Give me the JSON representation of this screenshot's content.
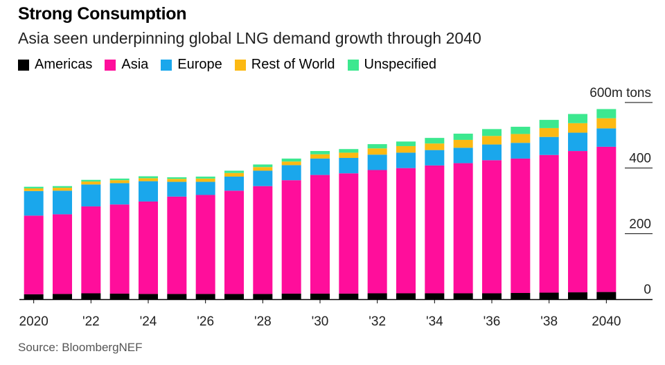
{
  "header": {
    "title": "Strong Consumption",
    "subtitle": "Asia seen underpinning global LNG demand growth through 2040"
  },
  "footer": {
    "source": "Source: BloombergNEF"
  },
  "legend": [
    {
      "name": "Americas",
      "color": "#000000"
    },
    {
      "name": "Asia",
      "color": "#ff0e9b"
    },
    {
      "name": "Europe",
      "color": "#1aa7ec"
    },
    {
      "name": "Rest of World",
      "color": "#fcb913"
    },
    {
      "name": "Unspecified",
      "color": "#3ce88f"
    }
  ],
  "chart_data": {
    "type": "bar",
    "stacked": true,
    "title": "Strong Consumption",
    "subtitle": "Asia seen underpinning global LNG demand growth through 2040",
    "unit_label": "600m tons",
    "ylim": [
      0,
      600
    ],
    "y_ticks": [
      0,
      200,
      400,
      600
    ],
    "y_tick_labels": [
      "0",
      "200",
      "400",
      "600m tons"
    ],
    "axis_side": "right",
    "legend_position": "top-left",
    "grid": false,
    "categories": [
      "2020",
      "2021",
      "2022",
      "2023",
      "2024",
      "2025",
      "2026",
      "2027",
      "2028",
      "2029",
      "2030",
      "2031",
      "2032",
      "2033",
      "2034",
      "2035",
      "2036",
      "2037",
      "2038",
      "2039",
      "2040"
    ],
    "x_tick_labels": [
      "2020",
      "",
      "'22",
      "",
      "'24",
      "",
      "'26",
      "",
      "'28",
      "",
      "'30",
      "",
      "'32",
      "",
      "'34",
      "",
      "'36",
      "",
      "'38",
      "",
      "2040"
    ],
    "series": [
      {
        "name": "Americas",
        "color": "#000000",
        "values": [
          15,
          16,
          18,
          17,
          16,
          16,
          16,
          16,
          16,
          17,
          17,
          17,
          18,
          18,
          18,
          18,
          18,
          19,
          20,
          21,
          22
        ]
      },
      {
        "name": "Asia",
        "color": "#ff0e9b",
        "values": [
          240,
          243,
          265,
          272,
          282,
          297,
          302,
          315,
          329,
          346,
          362,
          367,
          376,
          382,
          390,
          397,
          406,
          410,
          420,
          431,
          443
        ]
      },
      {
        "name": "Europe",
        "color": "#1aa7ec",
        "values": [
          75,
          72,
          67,
          65,
          62,
          45,
          40,
          43,
          47,
          46,
          50,
          47,
          47,
          47,
          47,
          47,
          48,
          48,
          55,
          56,
          56
        ]
      },
      {
        "name": "Rest of World",
        "color": "#fcb913",
        "values": [
          8,
          9,
          9,
          9,
          9,
          9,
          10,
          11,
          11,
          11,
          13,
          16,
          19,
          20,
          20,
          24,
          26,
          27,
          27,
          29,
          31
        ]
      },
      {
        "name": "Unspecified",
        "color": "#3ce88f",
        "values": [
          5,
          5,
          5,
          5,
          6,
          5,
          6,
          7,
          8,
          9,
          10,
          11,
          13,
          14,
          17,
          19,
          21,
          22,
          25,
          28,
          28
        ]
      }
    ]
  }
}
